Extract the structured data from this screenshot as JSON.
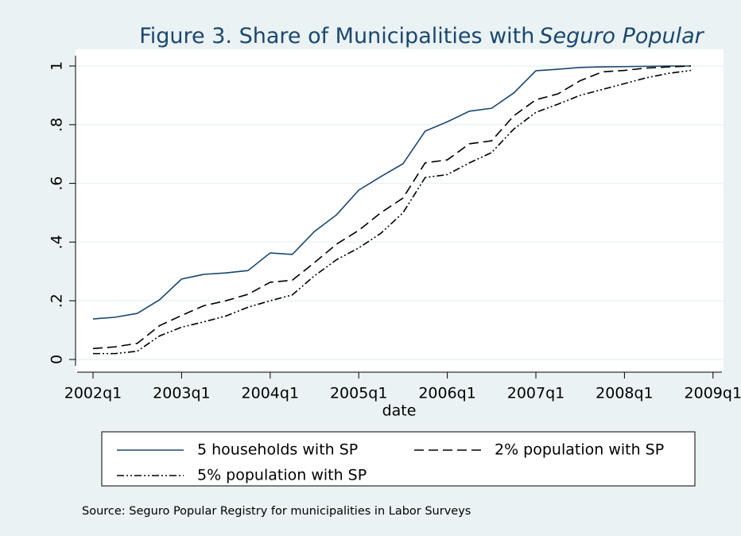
{
  "chart_data": {
    "type": "line",
    "title": {
      "text": "Figure 3. Share of Municipalities with",
      "emphasis": "Seguro Popular"
    },
    "x_label": "date",
    "source": "Source: Seguro Popular Registry for municipalities in Labor Surveys",
    "x": [
      "2002q1",
      "2002q2",
      "2002q3",
      "2002q4",
      "2003q1",
      "2003q2",
      "2003q3",
      "2003q4",
      "2004q1",
      "2004q2",
      "2004q3",
      "2004q4",
      "2005q1",
      "2005q2",
      "2005q3",
      "2005q4",
      "2006q1",
      "2006q2",
      "2006q3",
      "2006q4",
      "2007q1",
      "2007q2",
      "2007q3",
      "2007q4",
      "2008q1",
      "2008q2",
      "2008q3",
      "2008q4"
    ],
    "xticks": [
      "2002q1",
      "2003q1",
      "2004q1",
      "2005q1",
      "2006q1",
      "2007q1",
      "2008q1",
      "2009q1"
    ],
    "ylim": [
      0,
      1
    ],
    "yticks": [
      0,
      {
        "value": 0.2,
        "label": ".2"
      },
      {
        "value": 0.4,
        "label": ".4"
      },
      {
        "value": 0.6,
        "label": ".6"
      },
      {
        "value": 0.8,
        "label": ".8"
      },
      1
    ],
    "grid": true,
    "series": [
      {
        "name": "5 households with SP",
        "color": "#1a476f",
        "dash": "solid",
        "values": [
          0.138,
          0.144,
          0.157,
          0.203,
          0.274,
          0.29,
          0.295,
          0.303,
          0.363,
          0.358,
          0.436,
          0.493,
          0.577,
          0.623,
          0.667,
          0.778,
          0.81,
          0.846,
          0.856,
          0.908,
          0.984,
          0.989,
          0.995,
          0.997,
          0.998,
          0.999,
          1.0,
          1.0
        ]
      },
      {
        "name": "2% population with SP",
        "color": "#000000",
        "dash": "dash",
        "values": [
          0.037,
          0.043,
          0.055,
          0.115,
          0.15,
          0.183,
          0.2,
          0.222,
          0.263,
          0.27,
          0.33,
          0.393,
          0.44,
          0.5,
          0.55,
          0.67,
          0.68,
          0.735,
          0.745,
          0.83,
          0.885,
          0.905,
          0.95,
          0.98,
          0.985,
          0.993,
          0.997,
          1.0
        ]
      },
      {
        "name": "5% population with SP",
        "color": "#000000",
        "dash": "dash-dot",
        "values": [
          0.02,
          0.02,
          0.028,
          0.08,
          0.11,
          0.128,
          0.148,
          0.178,
          0.2,
          0.22,
          0.285,
          0.34,
          0.38,
          0.43,
          0.5,
          0.62,
          0.63,
          0.67,
          0.705,
          0.785,
          0.842,
          0.87,
          0.9,
          0.92,
          0.94,
          0.96,
          0.975,
          0.985
        ]
      }
    ]
  }
}
